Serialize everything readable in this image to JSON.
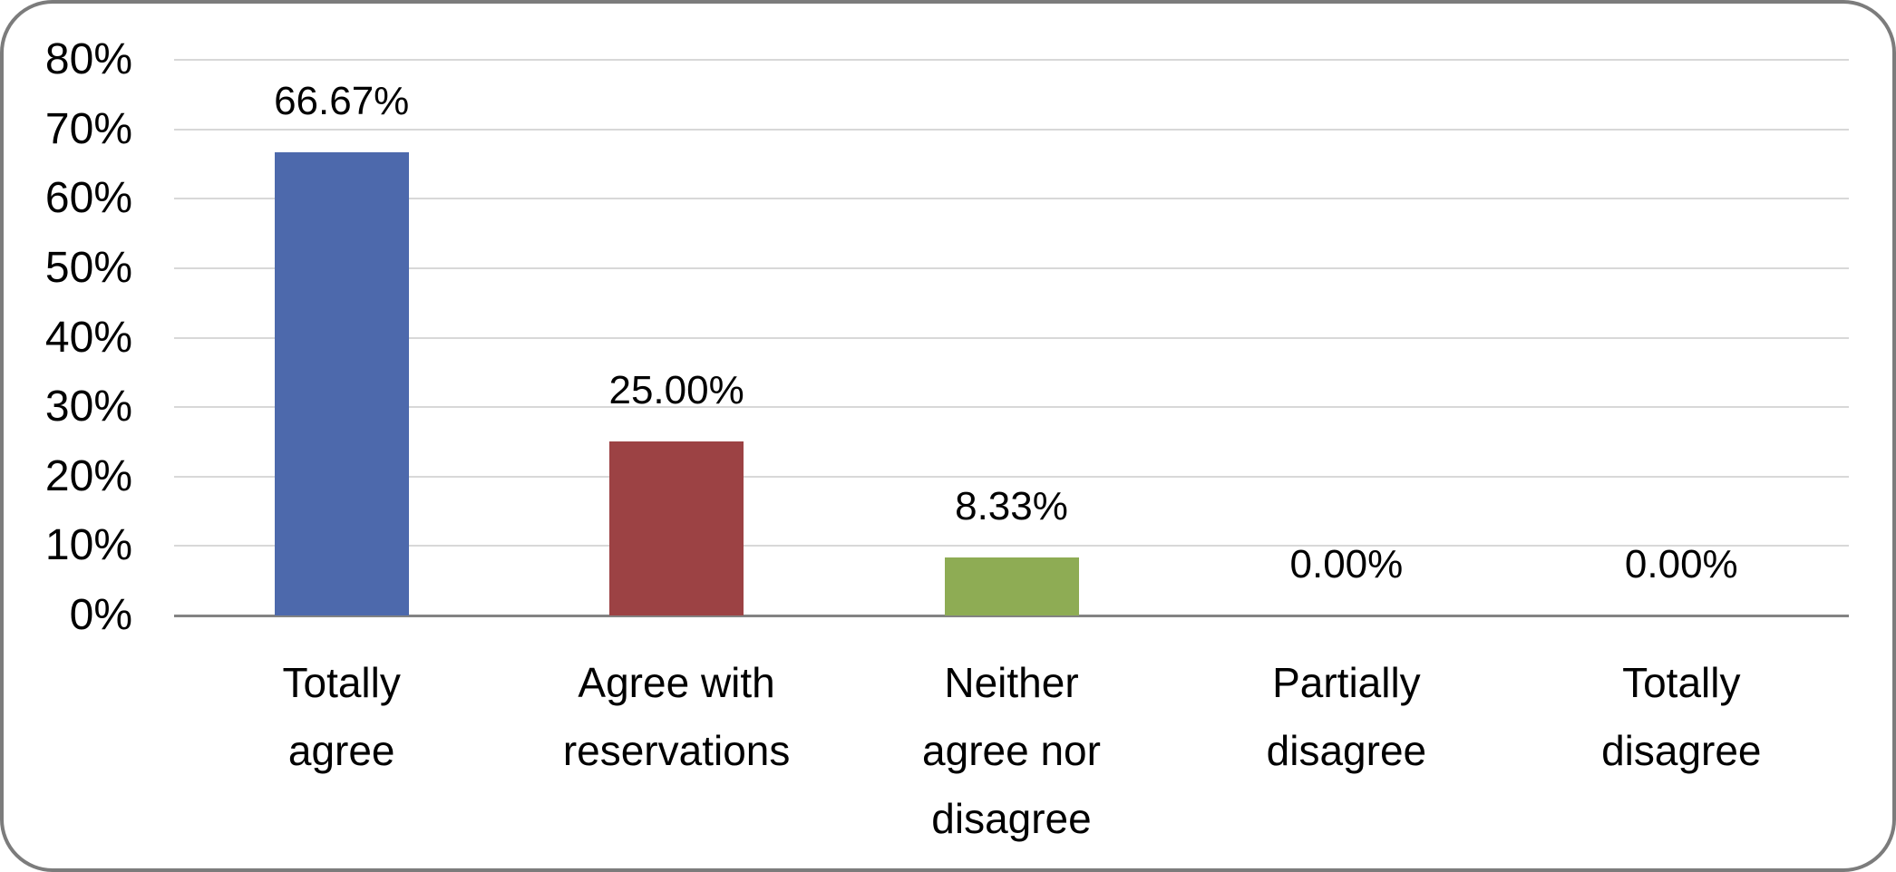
{
  "chart_data": {
    "type": "bar",
    "title": "",
    "xlabel": "",
    "ylabel": "",
    "categories": [
      "Totally\nagree",
      "Agree with\nreservations",
      "Neither\nagree nor\ndisagree",
      "Partially\ndisagree",
      "Totally\ndisagree"
    ],
    "values": [
      66.67,
      25.0,
      8.33,
      0.0,
      0.0
    ],
    "data_labels": [
      "66.67%",
      "25.00%",
      "8.33%",
      "0.00%",
      "0.00%"
    ],
    "y_ticks": [
      {
        "value": 80,
        "label": "80%"
      },
      {
        "value": 70,
        "label": "70%"
      },
      {
        "value": 60,
        "label": "60%"
      },
      {
        "value": 50,
        "label": "50%"
      },
      {
        "value": 40,
        "label": "40%"
      },
      {
        "value": 30,
        "label": "30%"
      },
      {
        "value": 20,
        "label": "20%"
      },
      {
        "value": 10,
        "label": "10%"
      },
      {
        "value": 0,
        "label": "0%"
      }
    ],
    "ylim": [
      0,
      80
    ],
    "grid": true,
    "legend": false,
    "bar_colors": [
      "#4d69ac",
      "#9c4244",
      "#8eac54",
      null,
      null
    ]
  }
}
